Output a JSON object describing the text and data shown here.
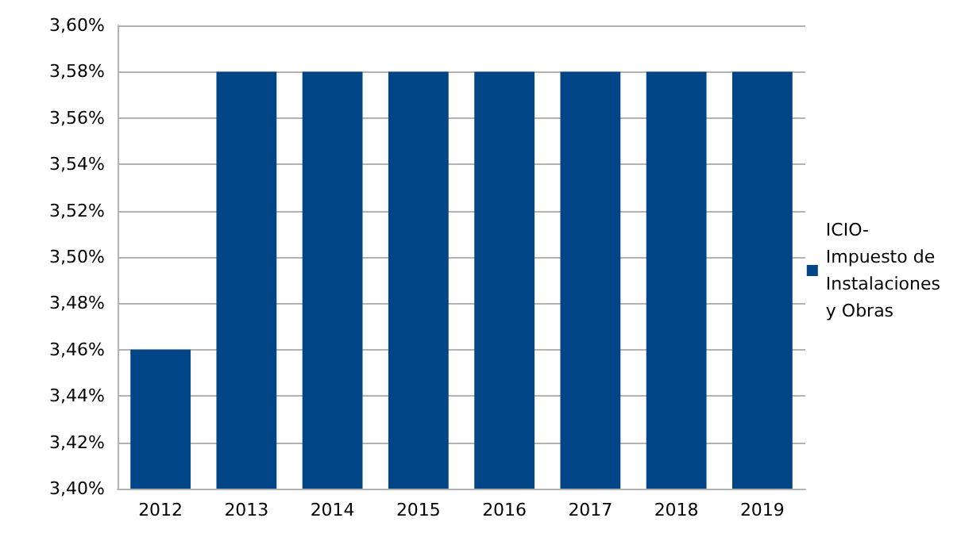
{
  "chart_data": {
    "type": "bar",
    "categories": [
      "2012",
      "2013",
      "2014",
      "2015",
      "2016",
      "2017",
      "2018",
      "2019"
    ],
    "series": [
      {
        "name": "ICIO-Impuesto de Instalaciones y Obras",
        "color": "#004586",
        "values": [
          3.46,
          3.58,
          3.58,
          3.58,
          3.58,
          3.58,
          3.58,
          3.58
        ]
      }
    ],
    "ylim": [
      3.4,
      3.6
    ],
    "yticks": [
      {
        "value": 3.4,
        "label": "3,40%"
      },
      {
        "value": 3.42,
        "label": "3,42%"
      },
      {
        "value": 3.44,
        "label": "3,44%"
      },
      {
        "value": 3.46,
        "label": "3,46%"
      },
      {
        "value": 3.48,
        "label": "3,48%"
      },
      {
        "value": 3.5,
        "label": "3,50%"
      },
      {
        "value": 3.52,
        "label": "3,52%"
      },
      {
        "value": 3.54,
        "label": "3,54%"
      },
      {
        "value": 3.56,
        "label": "3,56%"
      },
      {
        "value": 3.58,
        "label": "3,58%"
      },
      {
        "value": 3.6,
        "label": "3,60%"
      }
    ],
    "grid": "y",
    "legend": "right"
  }
}
